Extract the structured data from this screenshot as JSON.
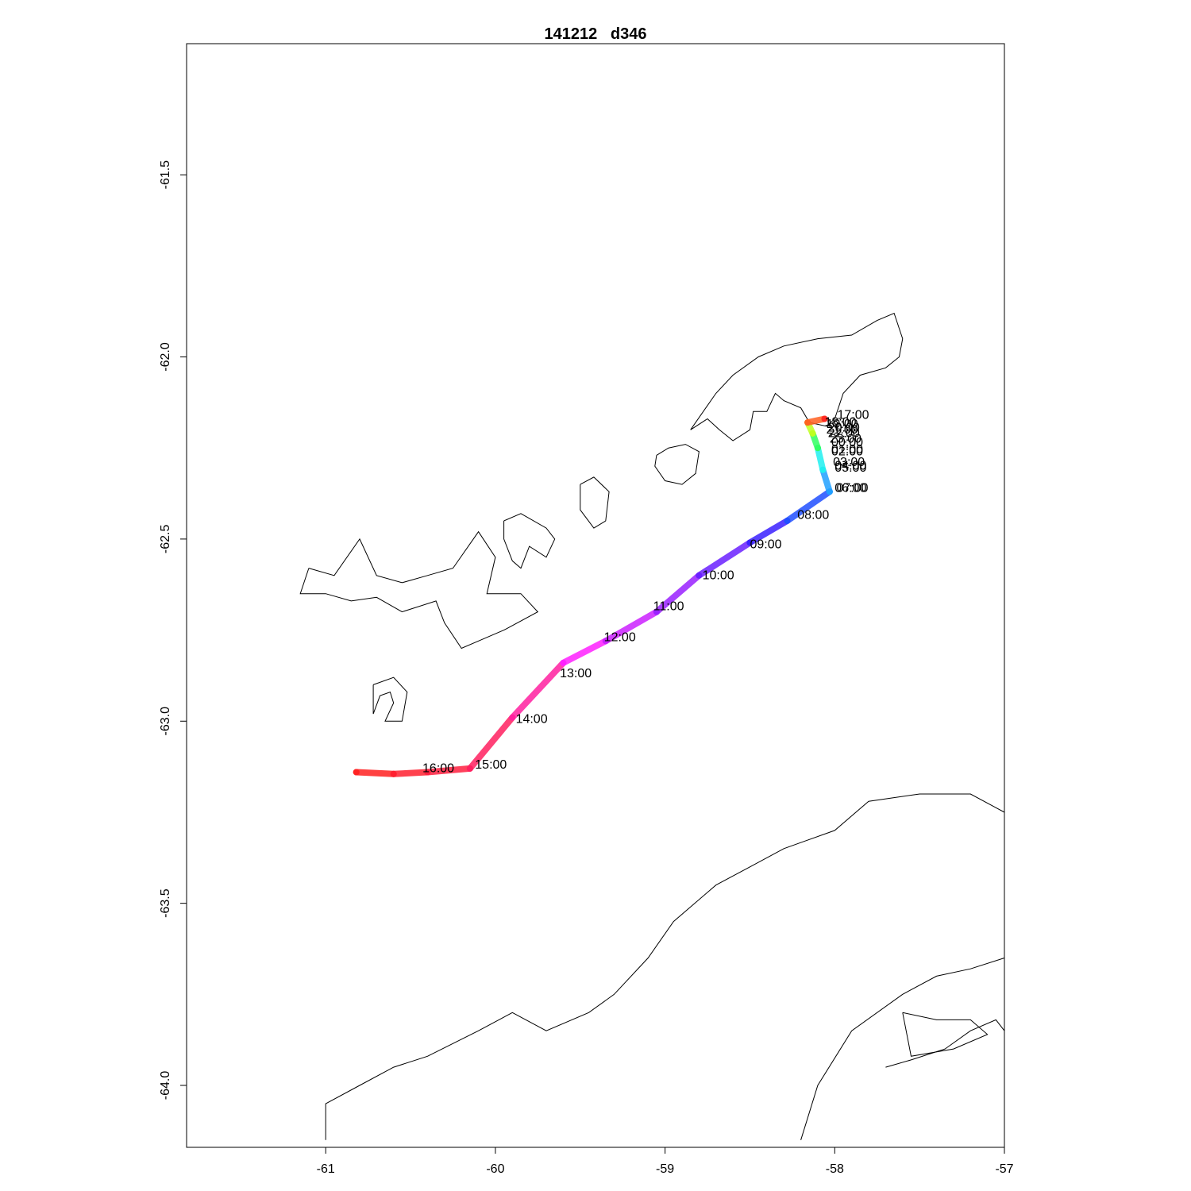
{
  "title": "141212   d346",
  "axes": {
    "x_ticks": [
      -61,
      -60,
      -59,
      -58,
      -57
    ],
    "y_ticks": [
      -61.5,
      -62.0,
      -62.5,
      -63.0,
      -63.5,
      -64.0
    ],
    "xlim": [
      -61.82,
      -57.0
    ],
    "ylim": [
      -64.17,
      -61.14
    ]
  },
  "chart_data": {
    "type": "line",
    "title": "141212   d346",
    "xlabel": "",
    "ylabel": "",
    "track": [
      {
        "x": -60.82,
        "y": -63.14,
        "color": "#ff2020"
      },
      {
        "x": -60.6,
        "y": -63.145,
        "color": "#ff2030"
      },
      {
        "x": -60.4,
        "y": -63.14,
        "color": "#ff2040"
      },
      {
        "x": -60.15,
        "y": -63.13,
        "color": "#ff2060"
      },
      {
        "x": -59.9,
        "y": -62.99,
        "color": "#ff20a0"
      },
      {
        "x": -59.6,
        "y": -62.84,
        "color": "#ff20ff"
      },
      {
        "x": -59.35,
        "y": -62.78,
        "color": "#cc20ff"
      },
      {
        "x": -59.05,
        "y": -62.7,
        "color": "#9a20ff"
      },
      {
        "x": -58.8,
        "y": -62.6,
        "color": "#6a20ff"
      },
      {
        "x": -58.5,
        "y": -62.51,
        "color": "#3a20ff"
      },
      {
        "x": -58.28,
        "y": -62.45,
        "color": "#2050ff"
      },
      {
        "x": -58.03,
        "y": -62.37,
        "color": "#20a0ff"
      },
      {
        "x": -58.07,
        "y": -62.31,
        "color": "#20f0f0"
      },
      {
        "x": -58.1,
        "y": -62.25,
        "color": "#30ff60"
      },
      {
        "x": -58.13,
        "y": -62.21,
        "color": "#c0ff20"
      },
      {
        "x": -58.16,
        "y": -62.18,
        "color": "#ff6020"
      },
      {
        "x": -58.06,
        "y": -62.17,
        "color": "#ff2020"
      }
    ],
    "time_labels": [
      {
        "text": "17:00",
        "x": -57.985,
        "y": -62.17
      },
      {
        "text": "18:00",
        "x": -58.06,
        "y": -62.19
      },
      {
        "text": "19:00",
        "x": -58.05,
        "y": -62.195
      },
      {
        "text": "20:00",
        "x": -58.04,
        "y": -62.205
      },
      {
        "text": "21:00",
        "x": -58.05,
        "y": -62.21
      },
      {
        "text": "22:00",
        "x": -58.04,
        "y": -62.22
      },
      {
        "text": "23:00",
        "x": -58.03,
        "y": -62.235
      },
      {
        "text": "00:00",
        "x": -58.02,
        "y": -62.245
      },
      {
        "text": "01:00",
        "x": -58.02,
        "y": -62.265
      },
      {
        "text": "02:00",
        "x": -58.02,
        "y": -62.27
      },
      {
        "text": "03:00",
        "x": -58.01,
        "y": -62.3
      },
      {
        "text": "04:00",
        "x": -58.0,
        "y": -62.31
      },
      {
        "text": "05:00",
        "x": -58.0,
        "y": -62.315
      },
      {
        "text": "06:00",
        "x": -58.0,
        "y": -62.37
      },
      {
        "text": "07:00",
        "x": -57.99,
        "y": -62.37
      },
      {
        "text": "08:00",
        "x": -58.22,
        "y": -62.445
      },
      {
        "text": "09:00",
        "x": -58.5,
        "y": -62.525
      },
      {
        "text": "10:00",
        "x": -58.78,
        "y": -62.61
      },
      {
        "text": "11:00",
        "x": -59.07,
        "y": -62.695
      },
      {
        "text": "12:00",
        "x": -59.36,
        "y": -62.78
      },
      {
        "text": "13:00",
        "x": -59.62,
        "y": -62.88
      },
      {
        "text": "14:00",
        "x": -59.88,
        "y": -63.005
      },
      {
        "text": "15:00",
        "x": -60.12,
        "y": -63.13
      },
      {
        "text": "16:00",
        "x": -60.43,
        "y": -63.14
      }
    ]
  },
  "coastlines": [
    {
      "name": "king-george-island",
      "points": [
        [
          -58.85,
          -62.2
        ],
        [
          -58.7,
          -62.1
        ],
        [
          -58.6,
          -62.05
        ],
        [
          -58.45,
          -62.0
        ],
        [
          -58.3,
          -61.97
        ],
        [
          -58.1,
          -61.95
        ],
        [
          -57.9,
          -61.94
        ],
        [
          -57.75,
          -61.9
        ],
        [
          -57.65,
          -61.88
        ],
        [
          -57.6,
          -61.95
        ],
        [
          -57.62,
          -62.0
        ],
        [
          -57.7,
          -62.03
        ],
        [
          -57.85,
          -62.05
        ],
        [
          -57.95,
          -62.1
        ],
        [
          -58.0,
          -62.17
        ],
        [
          -58.05,
          -62.19
        ],
        [
          -58.15,
          -62.18
        ],
        [
          -58.2,
          -62.14
        ],
        [
          -58.3,
          -62.12
        ],
        [
          -58.35,
          -62.1
        ],
        [
          -58.4,
          -62.15
        ],
        [
          -58.48,
          -62.15
        ],
        [
          -58.5,
          -62.2
        ],
        [
          -58.6,
          -62.23
        ],
        [
          -58.68,
          -62.2
        ],
        [
          -58.75,
          -62.17
        ],
        [
          -58.85,
          -62.2
        ]
      ]
    },
    {
      "name": "nelson-island",
      "points": [
        [
          -59.05,
          -62.27
        ],
        [
          -58.98,
          -62.25
        ],
        [
          -58.88,
          -62.24
        ],
        [
          -58.8,
          -62.26
        ],
        [
          -58.82,
          -62.32
        ],
        [
          -58.9,
          -62.35
        ],
        [
          -59.0,
          -62.34
        ],
        [
          -59.06,
          -62.3
        ],
        [
          -59.05,
          -62.27
        ]
      ]
    },
    {
      "name": "robert-island",
      "points": [
        [
          -59.5,
          -62.35
        ],
        [
          -59.42,
          -62.33
        ],
        [
          -59.33,
          -62.37
        ],
        [
          -59.35,
          -62.45
        ],
        [
          -59.42,
          -62.47
        ],
        [
          -59.5,
          -62.42
        ],
        [
          -59.5,
          -62.35
        ]
      ]
    },
    {
      "name": "greenwich-island",
      "points": [
        [
          -59.95,
          -62.45
        ],
        [
          -59.85,
          -62.43
        ],
        [
          -59.7,
          -62.47
        ],
        [
          -59.65,
          -62.5
        ],
        [
          -59.7,
          -62.55
        ],
        [
          -59.8,
          -62.52
        ],
        [
          -59.85,
          -62.58
        ],
        [
          -59.9,
          -62.56
        ],
        [
          -59.95,
          -62.5
        ],
        [
          -59.95,
          -62.45
        ]
      ]
    },
    {
      "name": "livingston-island",
      "points": [
        [
          -61.1,
          -62.58
        ],
        [
          -60.95,
          -62.6
        ],
        [
          -60.8,
          -62.5
        ],
        [
          -60.7,
          -62.6
        ],
        [
          -60.55,
          -62.62
        ],
        [
          -60.4,
          -62.6
        ],
        [
          -60.25,
          -62.58
        ],
        [
          -60.1,
          -62.48
        ],
        [
          -60.0,
          -62.55
        ],
        [
          -60.05,
          -62.65
        ],
        [
          -59.85,
          -62.65
        ],
        [
          -59.75,
          -62.7
        ],
        [
          -59.95,
          -62.75
        ],
        [
          -60.1,
          -62.78
        ],
        [
          -60.2,
          -62.8
        ],
        [
          -60.3,
          -62.73
        ],
        [
          -60.35,
          -62.67
        ],
        [
          -60.55,
          -62.7
        ],
        [
          -60.7,
          -62.66
        ],
        [
          -60.85,
          -62.67
        ],
        [
          -61.0,
          -62.65
        ],
        [
          -61.15,
          -62.65
        ],
        [
          -61.1,
          -62.58
        ]
      ]
    },
    {
      "name": "deception-island",
      "points": [
        [
          -60.72,
          -62.9
        ],
        [
          -60.6,
          -62.88
        ],
        [
          -60.52,
          -62.92
        ],
        [
          -60.55,
          -63.0
        ],
        [
          -60.65,
          -63.0
        ],
        [
          -60.6,
          -62.95
        ],
        [
          -60.62,
          -62.92
        ],
        [
          -60.68,
          -62.93
        ],
        [
          -60.72,
          -62.98
        ],
        [
          -60.72,
          -62.9
        ]
      ]
    },
    {
      "name": "antarctic-peninsula-north",
      "points": [
        [
          -61.0,
          -64.15
        ],
        [
          -61.0,
          -64.05
        ],
        [
          -60.8,
          -64.0
        ],
        [
          -60.6,
          -63.95
        ],
        [
          -60.4,
          -63.92
        ],
        [
          -60.1,
          -63.85
        ],
        [
          -59.9,
          -63.8
        ],
        [
          -59.7,
          -63.85
        ],
        [
          -59.45,
          -63.8
        ],
        [
          -59.3,
          -63.75
        ],
        [
          -59.1,
          -63.65
        ],
        [
          -58.95,
          -63.55
        ],
        [
          -58.7,
          -63.45
        ],
        [
          -58.5,
          -63.4
        ],
        [
          -58.3,
          -63.35
        ],
        [
          -58.0,
          -63.3
        ],
        [
          -57.8,
          -63.22
        ],
        [
          -57.5,
          -63.2
        ],
        [
          -57.2,
          -63.2
        ],
        [
          -57.0,
          -63.25
        ]
      ]
    },
    {
      "name": "antarctic-peninsula-east",
      "points": [
        [
          -58.2,
          -64.15
        ],
        [
          -58.1,
          -64.0
        ],
        [
          -57.9,
          -63.85
        ],
        [
          -57.6,
          -63.75
        ],
        [
          -57.4,
          -63.7
        ],
        [
          -57.2,
          -63.68
        ],
        [
          -57.0,
          -63.65
        ]
      ]
    },
    {
      "name": "james-ross-coast",
      "points": [
        [
          -57.7,
          -63.95
        ],
        [
          -57.55,
          -63.93
        ],
        [
          -57.35,
          -63.9
        ],
        [
          -57.2,
          -63.85
        ],
        [
          -57.05,
          -63.82
        ],
        [
          -57.0,
          -63.85
        ],
        [
          -57.0,
          -64.15
        ]
      ]
    },
    {
      "name": "vega-island",
      "points": [
        [
          -57.6,
          -63.8
        ],
        [
          -57.4,
          -63.82
        ],
        [
          -57.2,
          -63.82
        ],
        [
          -57.1,
          -63.86
        ],
        [
          -57.3,
          -63.9
        ],
        [
          -57.55,
          -63.92
        ],
        [
          -57.6,
          -63.8
        ]
      ]
    }
  ]
}
